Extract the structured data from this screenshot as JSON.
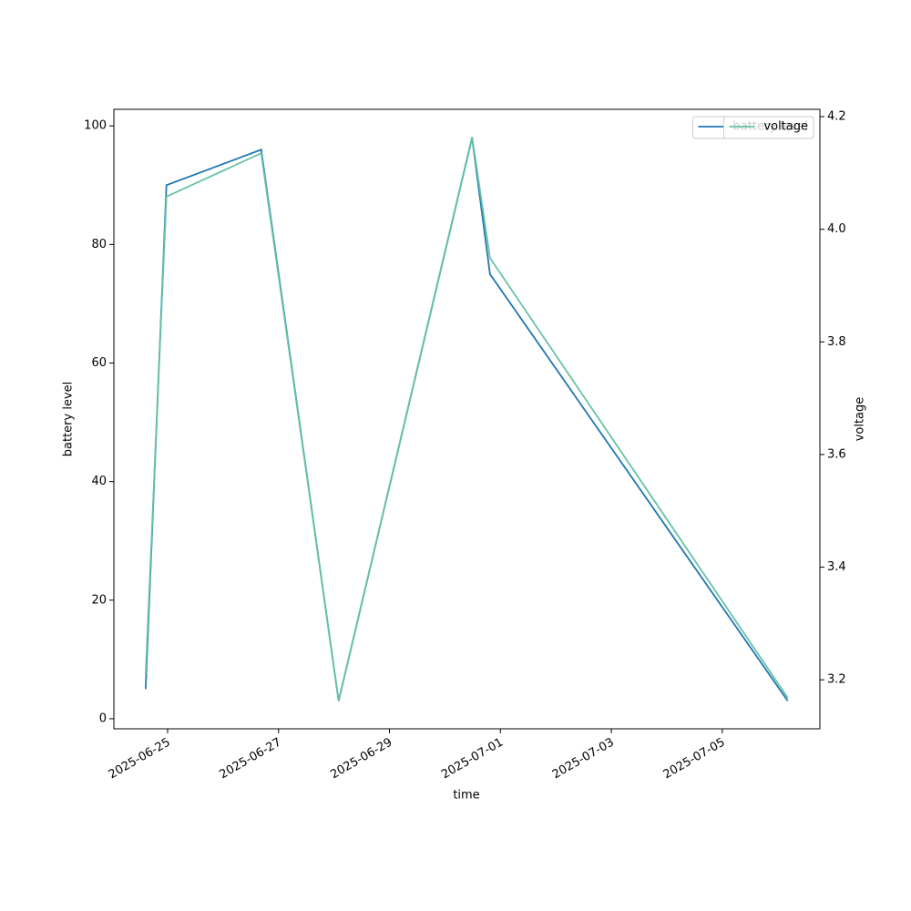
{
  "chart_data": {
    "type": "line",
    "x_label": "time",
    "y_label": "battery level",
    "y2_label": "voltage",
    "x": [
      "2025-06-24T14:30",
      "2025-06-24T23:30",
      "2025-06-26T16:30",
      "2025-06-28T02:00",
      "2025-06-30T11:45",
      "2025-06-30T19:30",
      "2025-07-06T04:20"
    ],
    "series": [
      {
        "name": "battery level",
        "color": "#1f77b4",
        "values": [
          5,
          90,
          96,
          3,
          98,
          75,
          3
        ]
      },
      {
        "name": "voltage",
        "color": "#66c2a5",
        "axis": "y2",
        "values": [
          3.21,
          4.058,
          4.135,
          3.163,
          4.164,
          3.949,
          3.168
        ]
      }
    ],
    "xlim": [
      "2025-06-24T00:45",
      "2025-07-06T18:15"
    ],
    "xticks": [
      "2025-06-25",
      "2025-06-27",
      "2025-06-29",
      "2025-07-01",
      "2025-07-03",
      "2025-07-05"
    ],
    "ylim": [
      -1.7,
      102.8
    ],
    "yticks": [
      0,
      20,
      40,
      60,
      80,
      100
    ],
    "y2lim": [
      3.113,
      4.213
    ],
    "y2ticks": [
      3.2,
      3.4,
      3.6,
      3.8,
      {
        "value": 4,
        "label": "4.0"
      },
      4.2
    ],
    "legend": "upper right",
    "grid": false
  }
}
